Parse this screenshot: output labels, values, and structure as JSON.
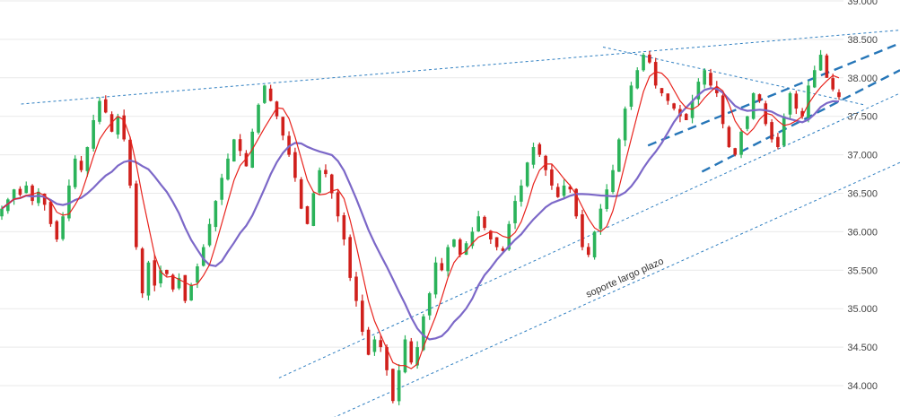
{
  "chart_data": {
    "type": "candlestick",
    "y_ticks": [
      "39.000",
      "38.500",
      "38.000",
      "37.500",
      "37.000",
      "36.500",
      "36.000",
      "35.500",
      "35.000",
      "34.500",
      "34.000"
    ],
    "ylim": [
      33.6,
      39.0
    ],
    "grid": {
      "horizontal": true,
      "vertical": false
    },
    "annotations": [
      {
        "text": "soporte largo plazo"
      }
    ],
    "colors": {
      "up": "#2bb35a",
      "down": "#d0201c",
      "ma_fast": "#e8231d",
      "ma_slow": "#7c68c8",
      "trendline": "#2f7fc1",
      "channel": "#2676b8",
      "grid": "#e9e9e9"
    },
    "series": [
      {
        "type": "ohlc",
        "note_points": "close values sampled along the price path (index 0..179)",
        "closes": [
          36.3,
          36.42,
          36.55,
          36.48,
          36.6,
          36.4,
          36.52,
          36.35,
          36.1,
          35.9,
          36.2,
          36.6,
          36.95,
          36.8,
          37.1,
          37.45,
          37.7,
          37.55,
          37.3,
          37.5,
          37.2,
          36.6,
          35.8,
          35.2,
          35.6,
          35.3,
          35.5,
          35.45,
          35.25,
          35.4,
          35.1,
          35.3,
          35.55,
          35.8,
          36.1,
          36.4,
          36.7,
          36.95,
          37.2,
          37.05,
          36.85,
          37.3,
          37.65,
          37.9,
          37.7,
          37.5,
          37.25,
          37.0,
          36.7,
          36.3,
          36.1,
          36.5,
          36.8,
          36.75,
          36.5,
          36.2,
          35.9,
          35.4,
          35.1,
          34.7,
          34.4,
          34.6,
          34.5,
          34.2,
          33.8,
          34.2,
          34.6,
          34.3,
          34.5,
          34.9,
          35.2,
          35.6,
          35.5,
          35.8,
          35.9,
          35.7,
          35.85,
          36.0,
          36.2,
          36.05,
          35.9,
          35.8,
          35.75,
          36.1,
          36.4,
          36.6,
          36.9,
          37.1,
          37.0,
          36.8,
          36.6,
          36.45,
          36.6,
          36.55,
          36.2,
          35.8,
          35.7,
          36.0,
          36.3,
          36.55,
          36.8,
          37.2,
          37.6,
          37.9,
          38.1,
          38.3,
          38.2,
          37.9,
          37.8,
          37.7,
          37.6,
          37.5,
          37.45,
          37.7,
          37.95,
          38.1,
          37.9,
          37.8,
          37.4,
          37.1,
          37.0,
          37.3,
          37.5,
          37.8,
          37.7,
          37.4,
          37.2,
          37.1,
          37.5,
          37.8,
          37.6,
          37.5,
          37.9,
          38.1,
          38.3,
          38.0,
          37.85,
          37.75
        ],
        "n": 138
      },
      {
        "type": "line",
        "role": "fast moving average",
        "window": 5
      },
      {
        "type": "line",
        "role": "slow moving average",
        "window": 14
      }
    ],
    "lines": [
      {
        "role": "resistance",
        "style": "dotted",
        "p1": [
          0.0235,
          37.66
        ],
        "p2": [
          1.0,
          38.62
        ]
      },
      {
        "role": "long-term support",
        "style": "dotted",
        "p1": [
          0.37,
          33.58
        ],
        "p2": [
          1.0,
          36.9
        ]
      },
      {
        "role": "inner support",
        "style": "dotted",
        "p1": [
          0.31,
          34.1
        ],
        "p2": [
          1.0,
          37.8
        ]
      },
      {
        "role": "upper wedge",
        "style": "dotted",
        "p1": [
          0.67,
          38.4
        ],
        "p2": [
          0.96,
          37.65
        ]
      },
      {
        "role": "channel-top",
        "style": "dashed",
        "p1": [
          0.72,
          37.12
        ],
        "p2": [
          1.0,
          38.45
        ]
      },
      {
        "role": "channel-bottom",
        "style": "dashed",
        "p1": [
          0.78,
          36.78
        ],
        "p2": [
          1.0,
          38.1
        ]
      }
    ]
  }
}
